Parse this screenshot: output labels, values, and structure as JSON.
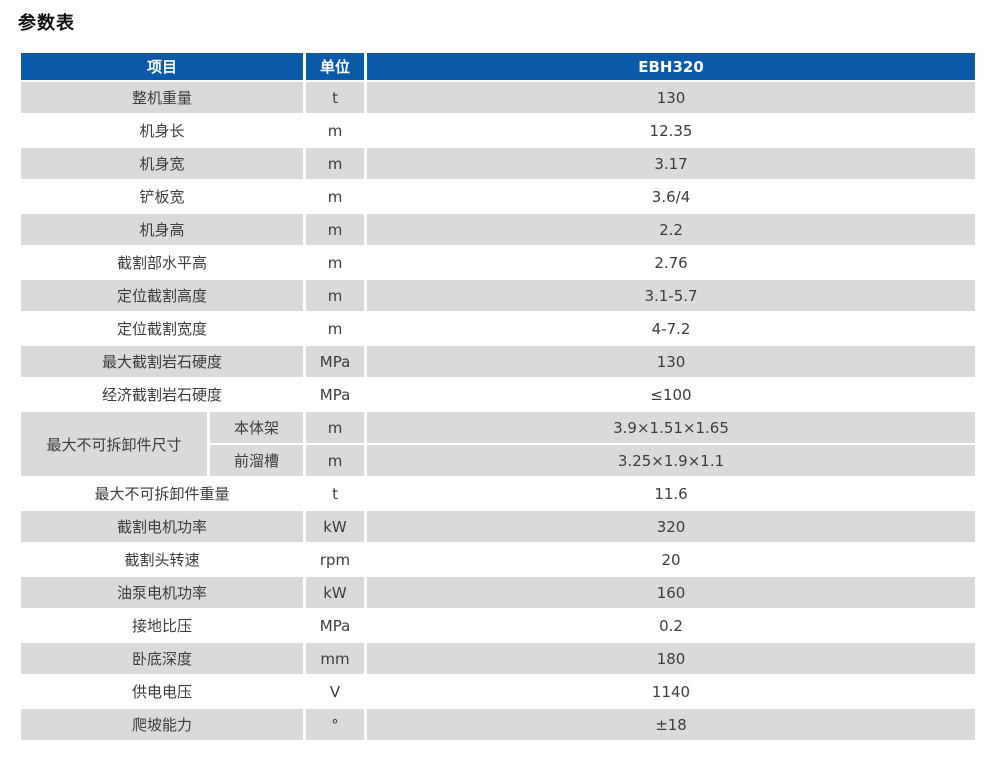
{
  "page": {
    "title": "参数表"
  },
  "colors": {
    "header_bg": "#0a5aa9",
    "header_text": "#ffffff",
    "row_shaded_bg": "#d9dada",
    "row_plain_bg": "#ffffff",
    "cell_text": "#3c3c3c"
  },
  "table": {
    "headers": {
      "item": "项目",
      "unit": "单位",
      "model": "EBH320"
    },
    "rows": [
      {
        "item": "整机重量",
        "unit": "t",
        "value": "130"
      },
      {
        "item": "机身长",
        "unit": "m",
        "value": "12.35"
      },
      {
        "item": "机身宽",
        "unit": "m",
        "value": "3.17"
      },
      {
        "item": "铲板宽",
        "unit": "m",
        "value": "3.6/4"
      },
      {
        "item": "机身高",
        "unit": "m",
        "value": "2.2"
      },
      {
        "item": "截割部水平高",
        "unit": "m",
        "value": "2.76"
      },
      {
        "item": "定位截割高度",
        "unit": "m",
        "value": "3.1-5.7"
      },
      {
        "item": "定位截割宽度",
        "unit": "m",
        "value": "4-7.2"
      },
      {
        "item": "最大截割岩石硬度",
        "unit": "MPa",
        "value": "130"
      },
      {
        "item": "经济截割岩石硬度",
        "unit": "MPa",
        "value": "≤100"
      }
    ],
    "merged": {
      "item": "最大不可拆卸件尺寸",
      "sub_rows": [
        {
          "sub_item": "本体架",
          "unit": "m",
          "value": "3.9×1.51×1.65"
        },
        {
          "sub_item": "前溜槽",
          "unit": "m",
          "value": "3.25×1.9×1.1"
        }
      ]
    },
    "rows_after": [
      {
        "item": "最大不可拆卸件重量",
        "unit": "t",
        "value": "11.6"
      },
      {
        "item": "截割电机功率",
        "unit": "kW",
        "value": "320"
      },
      {
        "item": "截割头转速",
        "unit": "rpm",
        "value": "20"
      },
      {
        "item": "油泵电机功率",
        "unit": "kW",
        "value": "160"
      },
      {
        "item": "接地比压",
        "unit": "MPa",
        "value": "0.2"
      },
      {
        "item": "卧底深度",
        "unit": "mm",
        "value": "180"
      },
      {
        "item": "供电电压",
        "unit": "V",
        "value": "1140"
      },
      {
        "item": "爬坡能力",
        "unit": "°",
        "value": "±18"
      }
    ]
  }
}
